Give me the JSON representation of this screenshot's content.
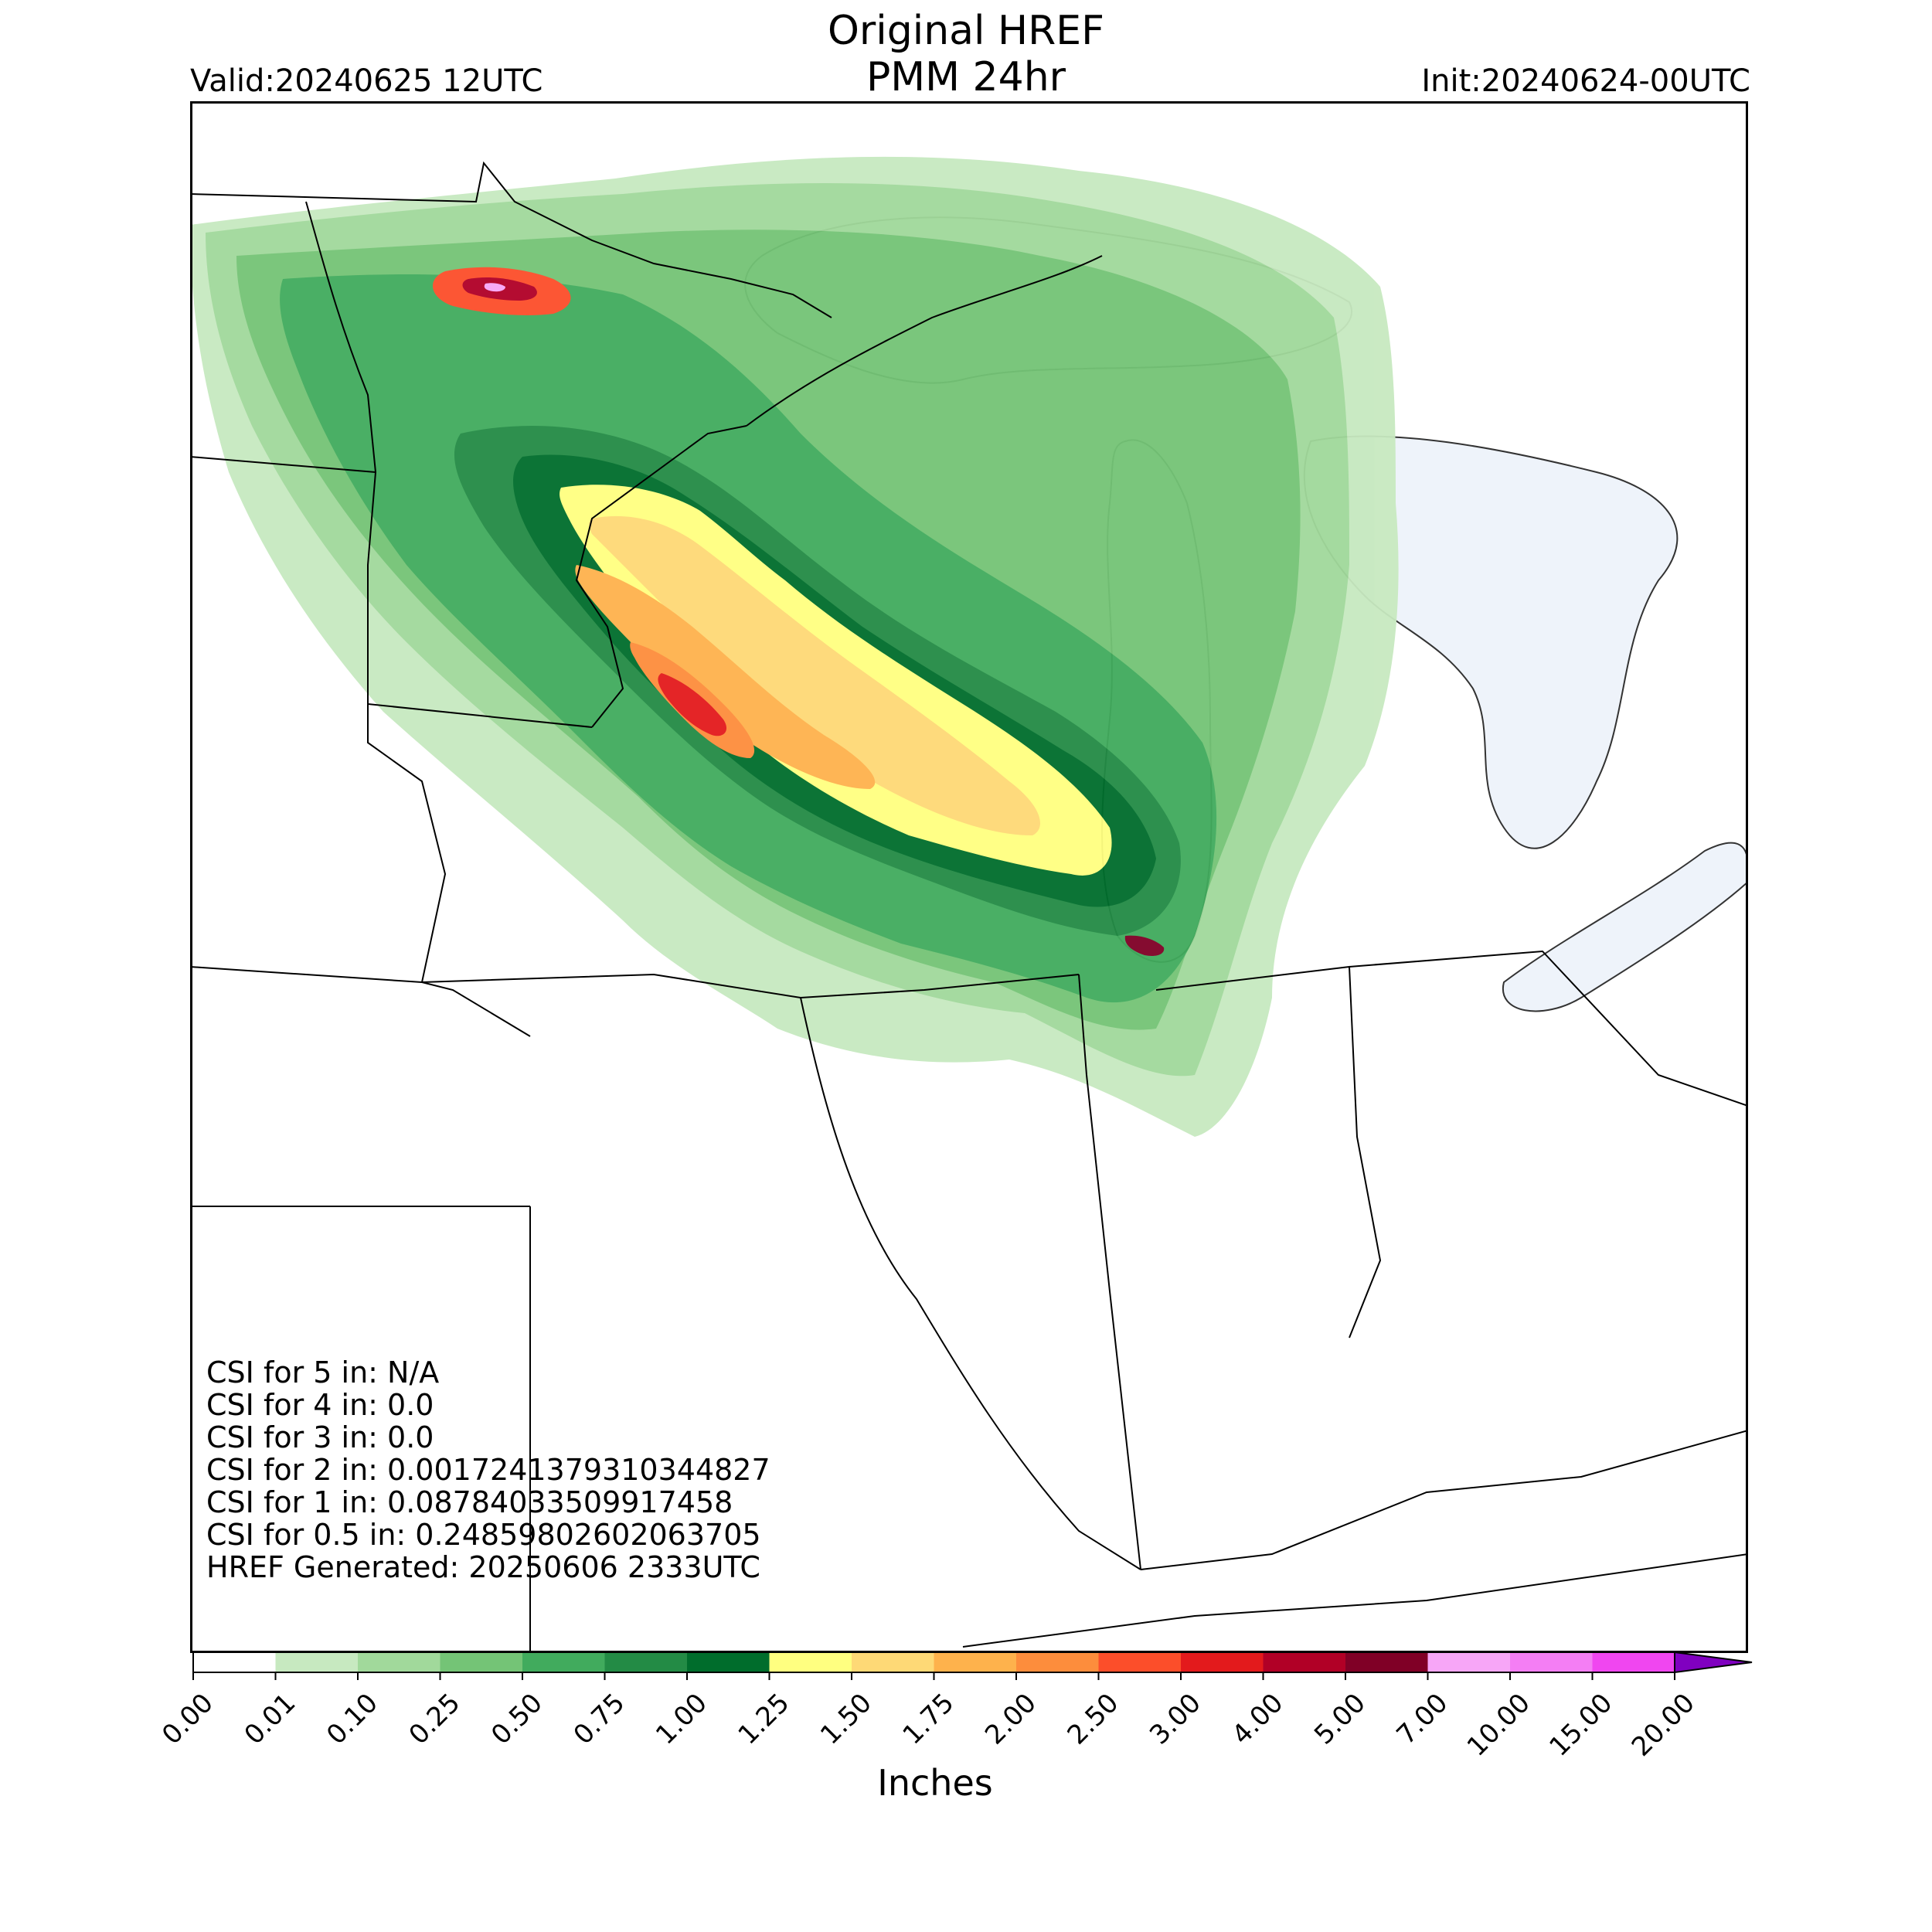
{
  "header": {
    "title_line1": "Original HREF",
    "title_line2": "PMM 24hr",
    "valid": "Valid:20240625 12UTC",
    "init": "Init:20240624-00UTC"
  },
  "stats": [
    "CSI for 5 in: N/A",
    "CSI for 4 in: 0.0",
    "CSI for 3 in: 0.0",
    "CSI for 2 in: 0.0017241379310344827",
    "CSI for 1 in: 0.08784033509917458",
    "CSI for 0.5 in: 0.24859802602063705",
    "HREF Generated: 20250606 2333UTC"
  ],
  "colorbar": {
    "label": "Inches",
    "ticks": [
      "0.00",
      "0.01",
      "0.10",
      "0.25",
      "0.50",
      "0.75",
      "1.00",
      "1.25",
      "1.50",
      "1.75",
      "2.00",
      "2.50",
      "3.00",
      "4.00",
      "5.00",
      "7.00",
      "10.00",
      "15.00",
      "20.00"
    ],
    "colors": [
      "#ffffff",
      "#c7e9c0",
      "#a1d99b",
      "#74c476",
      "#41ab5d",
      "#238b45",
      "#006d2c",
      "#ffff80",
      "#fed976",
      "#feb24c",
      "#fd8d3c",
      "#fc4e2a",
      "#e31a1c",
      "#b10026",
      "#800026",
      "#f7a6f7",
      "#f47ef4",
      "#f046f0",
      "#e01ee0",
      "#b010d0",
      "#8000c0"
    ]
  },
  "map": {
    "land_color": "#ffffff",
    "lake_color": "#eef3fa",
    "border_color": "#000000"
  }
}
